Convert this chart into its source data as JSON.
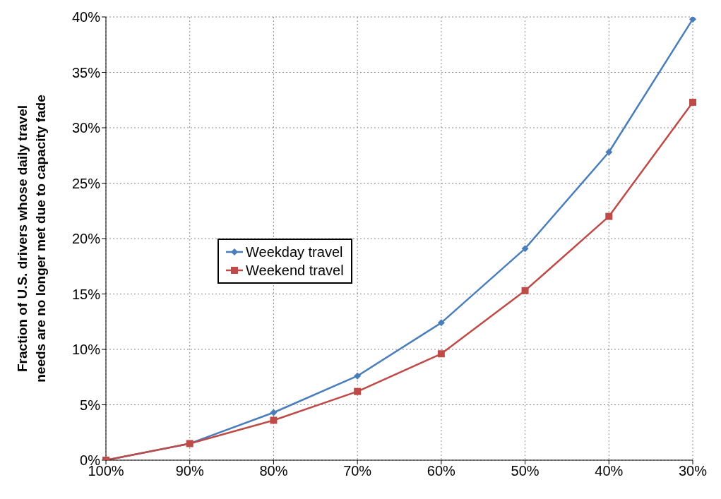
{
  "chart_data": {
    "type": "line",
    "ylabel": "Fraction of U.S. drivers whose daily travel needs are no longer met due to capacity fade",
    "categories": [
      "100%",
      "90%",
      "80%",
      "70%",
      "60%",
      "50%",
      "40%",
      "30%"
    ],
    "series": [
      {
        "name": "Weekday travel",
        "color": "#4a7ebb",
        "marker": "diamond",
        "values": [
          0,
          1.5,
          4.3,
          7.6,
          12.4,
          19.1,
          27.8,
          39.8
        ]
      },
      {
        "name": "Weekend travel",
        "color": "#be4b48",
        "marker": "square",
        "values": [
          0,
          1.5,
          3.6,
          6.2,
          9.6,
          15.3,
          22.0,
          32.3
        ]
      }
    ],
    "ylim": [
      0,
      40
    ],
    "yticks": [
      {
        "value": 0,
        "label": "0%"
      },
      {
        "value": 5,
        "label": "5%"
      },
      {
        "value": 10,
        "label": "10%"
      },
      {
        "value": 15,
        "label": "15%"
      },
      {
        "value": 20,
        "label": "20%"
      },
      {
        "value": 25,
        "label": "25%"
      },
      {
        "value": 30,
        "label": "30%"
      },
      {
        "value": 35,
        "label": "35%"
      },
      {
        "value": 40,
        "label": "40%"
      }
    ],
    "grid": true,
    "legend": "left",
    "line_style": "solid"
  }
}
